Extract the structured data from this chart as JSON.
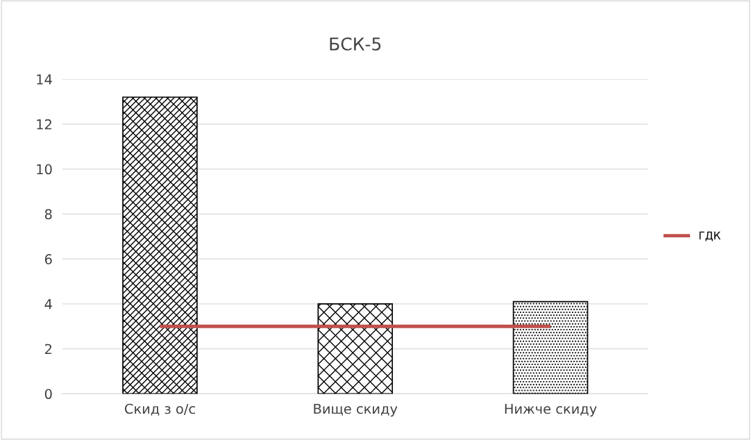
{
  "chart_data": {
    "type": "bar",
    "title": "БСК-5",
    "categories": [
      "Скид з о/с",
      "Вище скиду",
      "Нижче скиду"
    ],
    "series": [
      {
        "color": "#000000",
        "values": [
          13.2,
          4.0,
          4.1
        ]
      },
      {
        "type": "line",
        "name": "ГДК",
        "color": "#c0504d",
        "values": [
          3,
          3,
          3
        ]
      }
    ],
    "ylim": [
      0,
      14
    ],
    "yticks": [
      0,
      2,
      4,
      6,
      8,
      10,
      12,
      14
    ],
    "grid": "y",
    "legend": "right",
    "marker": "none",
    "line_style": "solid"
  }
}
